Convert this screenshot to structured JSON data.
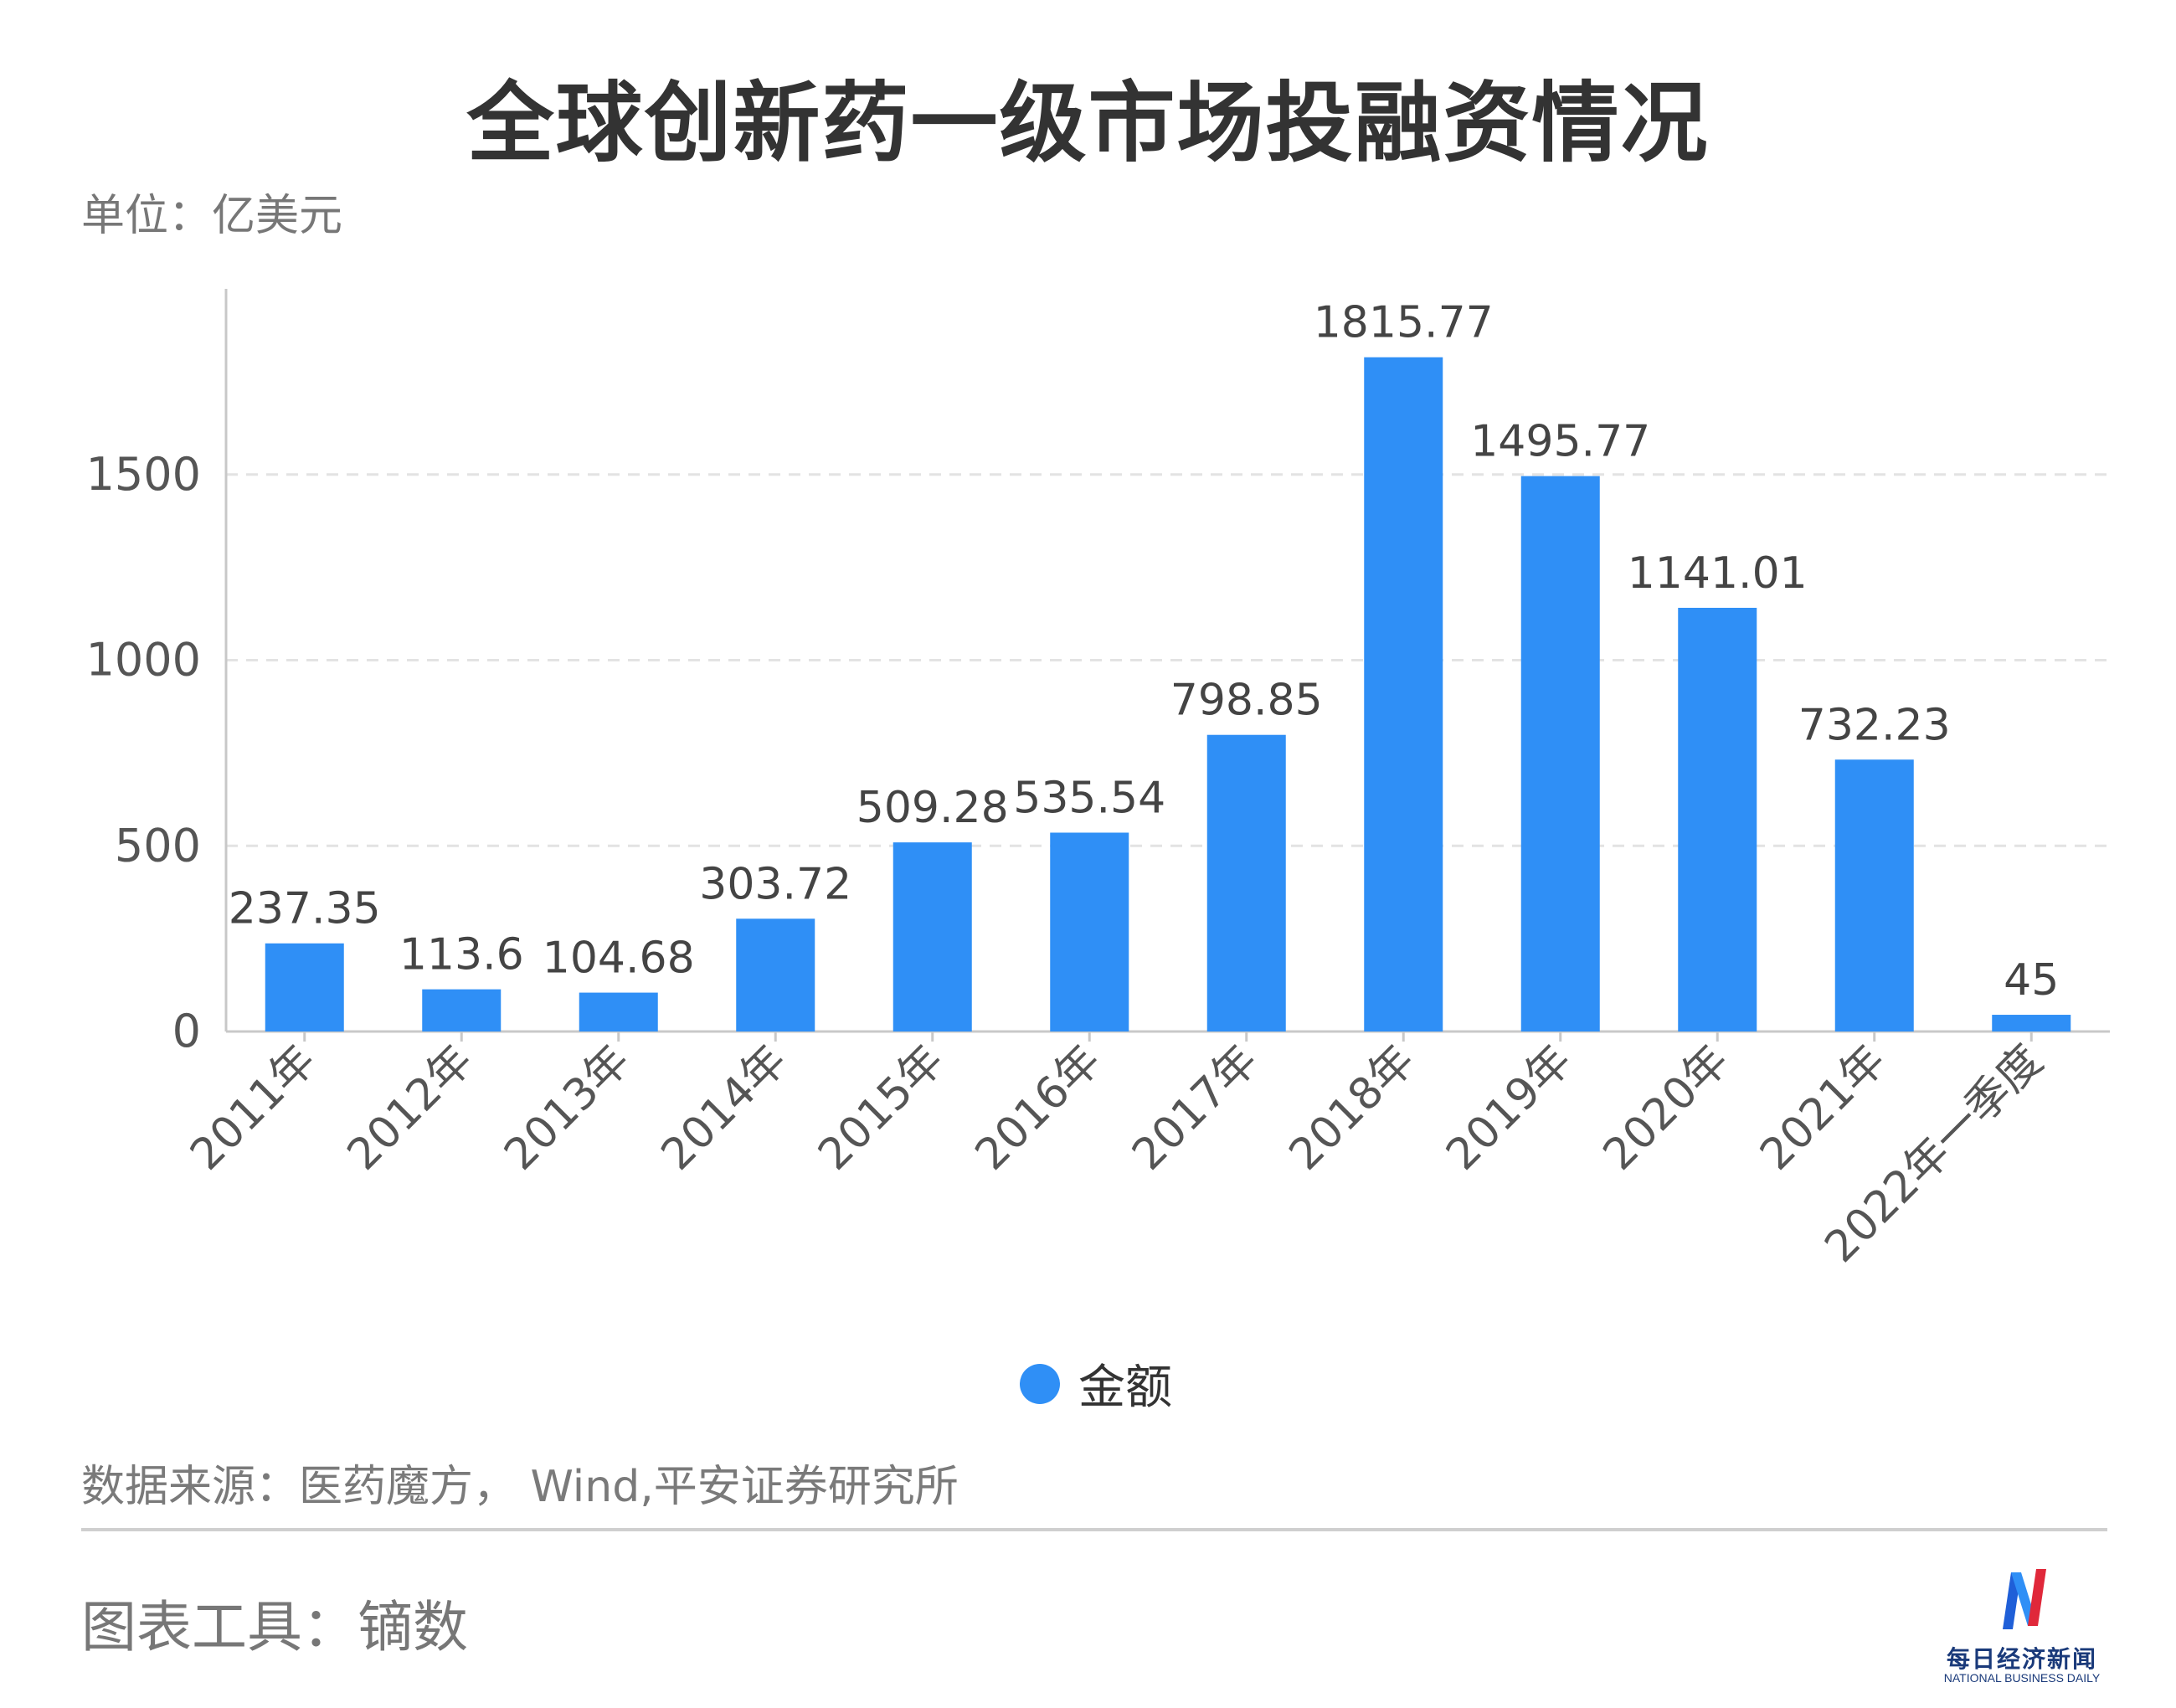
{
  "title": "全球创新药一级市场投融资情况",
  "unit_label": "单位：亿美元",
  "legend": {
    "label": "金额",
    "color": "#2f8ff6"
  },
  "source": "数据来源：医药魔方， Wind,平安证券研究所",
  "tool": "图表工具：镝数",
  "logo": {
    "name_cn": "每日经济新闻",
    "name_en": "NATIONAL BUSINESS DAILY",
    "icon": "nbd-logo-icon"
  },
  "chart_data": {
    "type": "bar",
    "categories": [
      "2011年",
      "2012年",
      "2013年",
      "2014年",
      "2015年",
      "2016年",
      "2017年",
      "2018年",
      "2019年",
      "2020年",
      "2021年",
      "2022年一季度"
    ],
    "series": [
      {
        "name": "金额",
        "values": [
          237.35,
          113.6,
          104.68,
          303.72,
          509.28,
          535.54,
          798.85,
          1815.77,
          1495.77,
          1141.01,
          732.23,
          45
        ]
      }
    ],
    "value_labels": [
      "237.35",
      "113.6",
      "104.68",
      "303.72",
      "509.28",
      "535.54",
      "798.85",
      "1815.77",
      "1495.77",
      "1141.01",
      "732.23",
      "45"
    ],
    "yticks": [
      0,
      500,
      1000,
      1500
    ],
    "ylim": [
      0,
      2000
    ],
    "xlabel": "",
    "ylabel": "",
    "grid": "horizontal-dashed",
    "legend_position": "bottom-center",
    "bar_color": "#2f8ff6"
  }
}
